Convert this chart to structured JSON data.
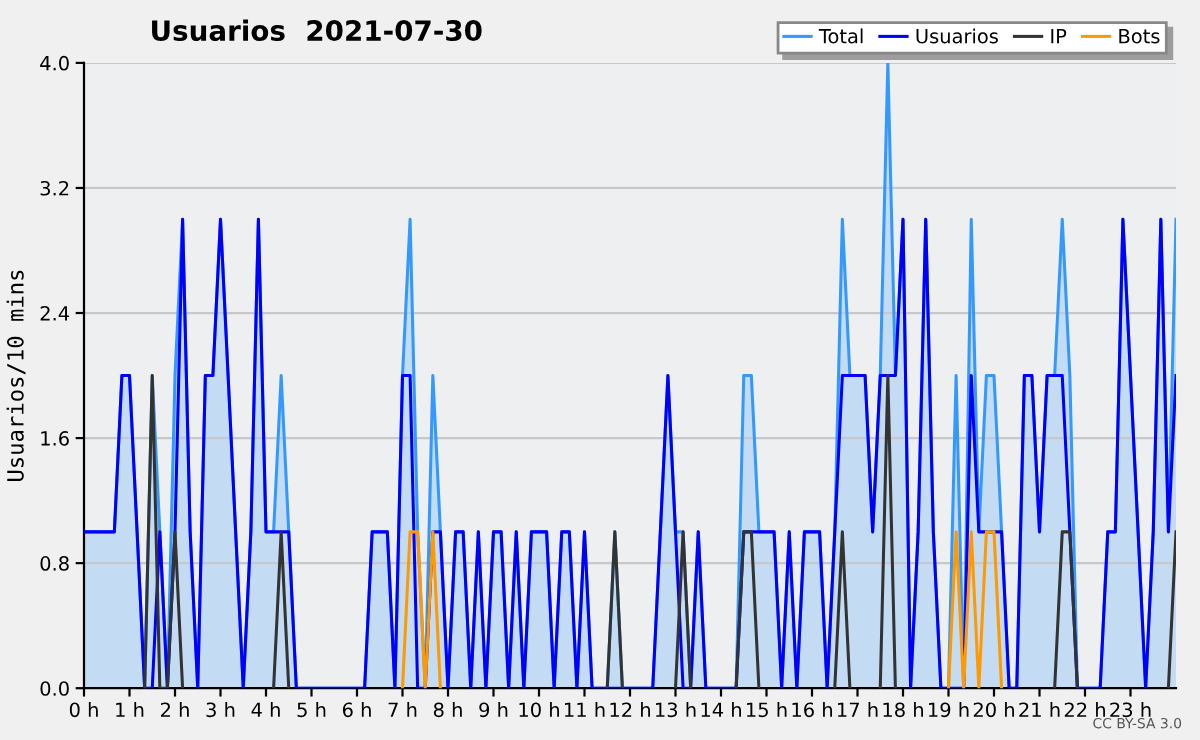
{
  "chart_data": {
    "type": "line",
    "title": "Usuarios  2021-07-30",
    "ylabel": "Usuarios/10 mins",
    "annotations": [
      "CC BY-SA 3.0"
    ],
    "xlim": [
      0,
      24
    ],
    "ylim": [
      0,
      4
    ],
    "xticks": [
      {
        "value": 0,
        "label": "0 h"
      },
      {
        "value": 1,
        "label": "1 h"
      },
      {
        "value": 2,
        "label": "2 h"
      },
      {
        "value": 3,
        "label": "3 h"
      },
      {
        "value": 4,
        "label": "4 h"
      },
      {
        "value": 5,
        "label": "5 h"
      },
      {
        "value": 6,
        "label": "6 h"
      },
      {
        "value": 7,
        "label": "7 h"
      },
      {
        "value": 8,
        "label": "8 h"
      },
      {
        "value": 9,
        "label": "9 h"
      },
      {
        "value": 10,
        "label": "10 h"
      },
      {
        "value": 11,
        "label": "11 h"
      },
      {
        "value": 12,
        "label": "12 h"
      },
      {
        "value": 13,
        "label": "13 h"
      },
      {
        "value": 14,
        "label": "14 h"
      },
      {
        "value": 15,
        "label": "15 h"
      },
      {
        "value": 16,
        "label": "16 h"
      },
      {
        "value": 17,
        "label": "17 h"
      },
      {
        "value": 18,
        "label": "18 h"
      },
      {
        "value": 19,
        "label": "19 h"
      },
      {
        "value": 20,
        "label": "20 h"
      },
      {
        "value": 21,
        "label": "21 h"
      },
      {
        "value": 22,
        "label": "22 h"
      },
      {
        "value": 23,
        "label": "23 h"
      }
    ],
    "yticks": [
      {
        "value": 0,
        "label": "0.0"
      },
      {
        "value": 0.8,
        "label": "0.8"
      },
      {
        "value": 1.6,
        "label": "1.6"
      },
      {
        "value": 2.4,
        "label": "2.4"
      },
      {
        "value": 3.2,
        "label": "3.2"
      },
      {
        "value": 4,
        "label": "4.0"
      }
    ],
    "grid": "y",
    "legend": "top right",
    "marker": "none",
    "line_style": "solid",
    "x": [
      0,
      0.167,
      0.333,
      0.5,
      0.667,
      0.833,
      1,
      1.167,
      1.333,
      1.5,
      1.667,
      1.833,
      2,
      2.167,
      2.333,
      2.5,
      2.667,
      2.833,
      3,
      3.167,
      3.333,
      3.5,
      3.667,
      3.833,
      4,
      4.167,
      4.333,
      4.5,
      4.667,
      4.833,
      5,
      5.167,
      5.333,
      5.5,
      5.667,
      5.833,
      6,
      6.167,
      6.333,
      6.5,
      6.667,
      6.833,
      7,
      7.167,
      7.333,
      7.5,
      7.667,
      7.833,
      8,
      8.167,
      8.333,
      8.5,
      8.667,
      8.833,
      9,
      9.167,
      9.333,
      9.5,
      9.667,
      9.833,
      10,
      10.167,
      10.333,
      10.5,
      10.667,
      10.833,
      11,
      11.167,
      11.333,
      11.5,
      11.667,
      11.833,
      12,
      12.167,
      12.333,
      12.5,
      12.667,
      12.833,
      13,
      13.167,
      13.333,
      13.5,
      13.667,
      13.833,
      14,
      14.167,
      14.333,
      14.5,
      14.667,
      14.833,
      15,
      15.167,
      15.333,
      15.5,
      15.667,
      15.833,
      16,
      16.167,
      16.333,
      16.5,
      16.667,
      16.833,
      17,
      17.167,
      17.333,
      17.5,
      17.667,
      17.833,
      18,
      18.167,
      18.333,
      18.5,
      18.667,
      18.833,
      19,
      19.167,
      19.333,
      19.5,
      19.667,
      19.833,
      20,
      20.167,
      20.333,
      20.5,
      20.667,
      20.833,
      21,
      21.167,
      21.333,
      21.5,
      21.667,
      21.833,
      22,
      22.167,
      22.333,
      22.5,
      22.667,
      22.833,
      23,
      23.167,
      23.333,
      23.5,
      23.667,
      23.833,
      24
    ],
    "series": [
      {
        "name": "Total",
        "type": "area",
        "color": "#3399ff",
        "values": [
          1,
          1,
          1,
          1,
          1,
          2,
          2,
          1,
          0,
          2,
          1,
          0,
          2,
          3,
          1,
          0,
          2,
          2,
          3,
          2,
          1,
          0,
          1,
          3,
          1,
          1,
          2,
          1,
          0,
          0,
          0,
          0,
          0,
          0,
          0,
          0,
          0,
          0,
          1,
          1,
          1,
          0,
          2,
          3,
          1,
          0,
          2,
          1,
          0,
          1,
          1,
          0,
          1,
          0,
          1,
          1,
          0,
          1,
          0,
          1,
          1,
          1,
          0,
          1,
          1,
          0,
          1,
          0,
          0,
          0,
          1,
          0,
          0,
          0,
          0,
          0,
          1,
          2,
          1,
          1,
          0,
          1,
          0,
          0,
          0,
          0,
          0,
          2,
          2,
          1,
          1,
          1,
          0,
          1,
          0,
          1,
          1,
          1,
          0,
          1,
          3,
          2,
          2,
          2,
          1,
          2,
          4,
          2,
          3,
          0,
          1,
          3,
          1,
          0,
          0,
          2,
          0,
          3,
          1,
          2,
          2,
          1,
          0,
          0,
          2,
          2,
          1,
          2,
          2,
          3,
          2,
          0,
          0,
          0,
          0,
          1,
          1,
          3,
          2,
          1,
          0,
          1,
          3,
          1,
          3
        ]
      },
      {
        "name": "Usuarios",
        "color": "#0000ff",
        "values": [
          1,
          1,
          1,
          1,
          1,
          2,
          2,
          1,
          0,
          0,
          1,
          0,
          1,
          3,
          1,
          0,
          2,
          2,
          3,
          2,
          1,
          0,
          1,
          3,
          1,
          1,
          1,
          1,
          0,
          0,
          0,
          0,
          0,
          0,
          0,
          0,
          0,
          0,
          1,
          1,
          1,
          0,
          2,
          2,
          0,
          0,
          1,
          1,
          0,
          1,
          1,
          0,
          1,
          0,
          1,
          1,
          0,
          1,
          0,
          1,
          1,
          1,
          0,
          1,
          1,
          0,
          1,
          0,
          0,
          0,
          0,
          0,
          0,
          0,
          0,
          0,
          1,
          2,
          1,
          0,
          0,
          1,
          0,
          0,
          0,
          0,
          0,
          1,
          1,
          1,
          1,
          1,
          0,
          1,
          0,
          1,
          1,
          1,
          0,
          1,
          2,
          2,
          2,
          2,
          1,
          2,
          2,
          2,
          3,
          0,
          1,
          3,
          1,
          0,
          0,
          0,
          0,
          2,
          1,
          1,
          1,
          1,
          0,
          0,
          2,
          2,
          1,
          2,
          2,
          2,
          1,
          0,
          0,
          0,
          0,
          1,
          1,
          3,
          2,
          1,
          0,
          1,
          3,
          1,
          2
        ]
      },
      {
        "name": "IP",
        "color": "#333333",
        "values": [
          null,
          null,
          null,
          null,
          null,
          null,
          null,
          null,
          0,
          2,
          0,
          0,
          1,
          0,
          null,
          null,
          null,
          null,
          null,
          null,
          null,
          null,
          null,
          null,
          null,
          0,
          1,
          0,
          null,
          null,
          null,
          null,
          null,
          null,
          null,
          null,
          null,
          null,
          null,
          null,
          null,
          null,
          null,
          null,
          null,
          null,
          null,
          null,
          null,
          null,
          null,
          null,
          null,
          null,
          null,
          null,
          null,
          null,
          null,
          null,
          null,
          null,
          null,
          null,
          null,
          null,
          null,
          null,
          null,
          0,
          1,
          0,
          null,
          null,
          null,
          null,
          null,
          null,
          0,
          1,
          0,
          null,
          null,
          null,
          null,
          null,
          0,
          1,
          1,
          0,
          null,
          null,
          null,
          null,
          null,
          null,
          null,
          null,
          null,
          0,
          1,
          0,
          null,
          null,
          null,
          0,
          2,
          0,
          null,
          null,
          null,
          null,
          null,
          null,
          null,
          null,
          null,
          null,
          null,
          null,
          null,
          null,
          null,
          null,
          null,
          null,
          null,
          null,
          0,
          1,
          1,
          0,
          null,
          null,
          null,
          null,
          null,
          null,
          null,
          null,
          null,
          null,
          null,
          0,
          1
        ]
      },
      {
        "name": "Bots",
        "color": "#ff9900",
        "values": [
          null,
          null,
          null,
          null,
          null,
          null,
          null,
          null,
          null,
          null,
          null,
          null,
          null,
          null,
          null,
          null,
          null,
          null,
          null,
          null,
          null,
          null,
          null,
          null,
          null,
          null,
          null,
          null,
          null,
          null,
          null,
          null,
          null,
          null,
          null,
          null,
          null,
          null,
          null,
          null,
          null,
          null,
          0,
          1,
          1,
          0,
          1,
          0,
          null,
          null,
          null,
          null,
          null,
          null,
          null,
          null,
          null,
          null,
          null,
          null,
          null,
          null,
          null,
          null,
          null,
          null,
          null,
          null,
          null,
          null,
          null,
          null,
          null,
          null,
          null,
          null,
          null,
          null,
          null,
          null,
          null,
          null,
          null,
          null,
          null,
          null,
          null,
          null,
          null,
          null,
          null,
          null,
          null,
          null,
          null,
          null,
          null,
          null,
          null,
          null,
          null,
          null,
          null,
          null,
          null,
          null,
          null,
          null,
          null,
          null,
          null,
          null,
          null,
          null,
          0,
          1,
          0,
          1,
          0,
          1,
          1,
          0,
          null,
          null,
          null,
          null,
          null,
          null,
          null,
          null,
          null,
          null,
          null,
          null,
          null,
          null,
          null,
          null,
          null,
          null,
          null,
          null,
          null,
          null,
          null
        ]
      }
    ]
  }
}
